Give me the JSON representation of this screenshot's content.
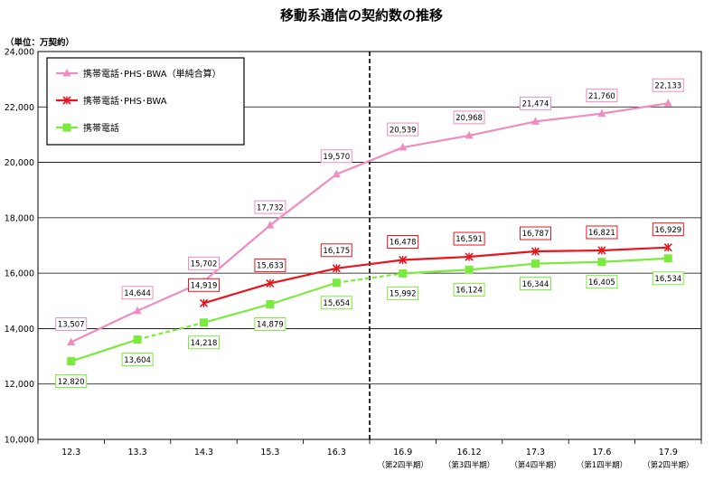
{
  "chart_data": {
    "type": "line",
    "title": "移動系通信の契約数の推移",
    "unit_label": "（単位：万契約）",
    "ylim": [
      10000,
      24000
    ],
    "y_ticks": [
      "10,000",
      "12,000",
      "14,000",
      "16,000",
      "18,000",
      "20,000",
      "22,000",
      "24,000"
    ],
    "y_tick_values": [
      10000,
      12000,
      14000,
      16000,
      18000,
      20000,
      22000,
      24000
    ],
    "grid": true,
    "legend_position": "top-left",
    "categories": [
      "12.3",
      "13.3",
      "14.3",
      "15.3",
      "16.3",
      "16.9",
      "16.12",
      "17.3",
      "17.6",
      "17.9"
    ],
    "category_sublabels": [
      "",
      "",
      "",
      "",
      "",
      "（第2四半期）",
      "（第3四半期）",
      "（第4四半期）",
      "（第1四半期）",
      "（第2四半期）"
    ],
    "divider_after_category": "16.3",
    "series": [
      {
        "name": "携帯電話･PHS･BWA（単純合算）",
        "color": "#f08cc0",
        "marker": "triangle",
        "values": [
          13507,
          14644,
          15702,
          17732,
          19570,
          20539,
          20968,
          21474,
          21760,
          22133
        ],
        "labels": [
          "13,507",
          "14,644",
          "15,702",
          "17,732",
          "19,570",
          "20,539",
          "20,968",
          "21,474",
          "21,760",
          "22,133"
        ],
        "dashed_segments": []
      },
      {
        "name": "携帯電話･PHS･BWA",
        "color": "#e8141e",
        "marker": "x",
        "values": [
          null,
          null,
          14919,
          15633,
          16175,
          16478,
          16591,
          16787,
          16821,
          16929
        ],
        "labels": [
          "",
          "",
          "14,919",
          "15,633",
          "16,175",
          "16,478",
          "16,591",
          "16,787",
          "16,821",
          "16,929"
        ],
        "dashed_segments": []
      },
      {
        "name": "携帯電話",
        "color": "#7aeb3c",
        "marker": "square",
        "values": [
          12820,
          13604,
          14218,
          14879,
          15654,
          15992,
          16124,
          16344,
          16405,
          16534
        ],
        "labels": [
          "12,820",
          "13,604",
          "14,218",
          "14,879",
          "15,654",
          "15,992",
          "16,124",
          "16,344",
          "16,405",
          "16,534"
        ],
        "dashed_segments": [
          1,
          4
        ]
      }
    ]
  }
}
